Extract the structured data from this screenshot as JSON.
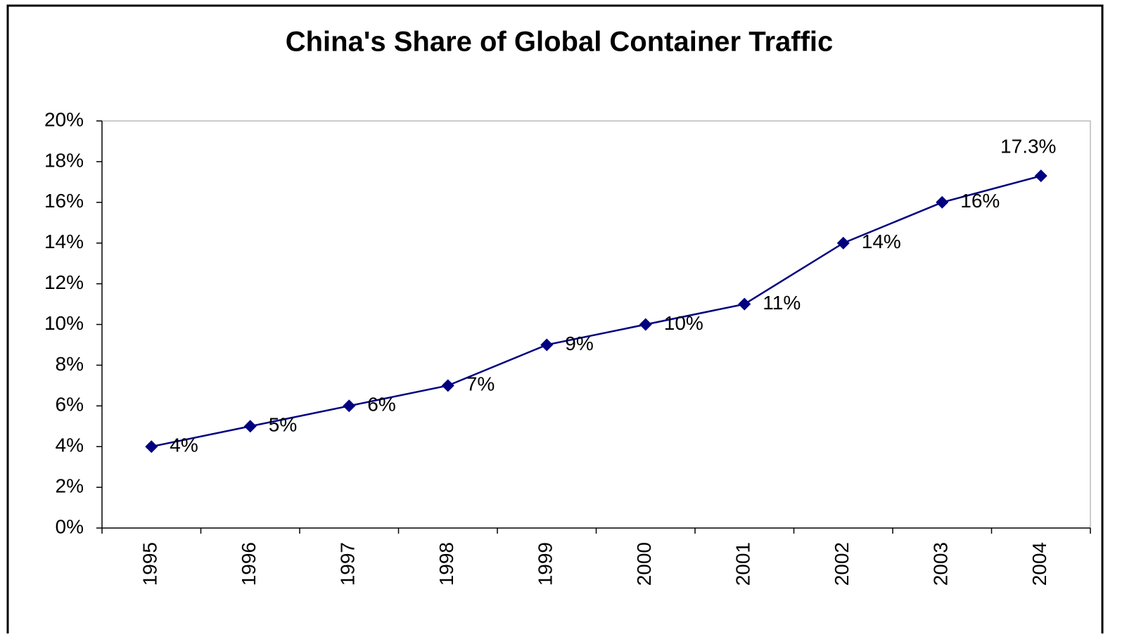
{
  "chart_data": {
    "type": "line",
    "title": "China's Share of Global Container Traffic",
    "categories": [
      "1995",
      "1996",
      "1997",
      "1998",
      "1999",
      "2000",
      "2001",
      "2002",
      "2003",
      "2004"
    ],
    "series": [
      {
        "color": "#000080",
        "values": [
          4,
          5,
          6,
          7,
          9,
          10,
          11,
          14,
          16,
          17.3
        ],
        "value_labels": [
          "4%",
          "5%",
          "6%",
          "7%",
          "9%",
          "10%",
          "11%",
          "14%",
          "16%",
          "17.3%"
        ]
      }
    ],
    "ylim": [
      0,
      20
    ],
    "yticks": [
      {
        "value": 0,
        "label": "0%"
      },
      {
        "value": 2,
        "label": "2%"
      },
      {
        "value": 4,
        "label": "4%"
      },
      {
        "value": 6,
        "label": "6%"
      },
      {
        "value": 8,
        "label": "8%"
      },
      {
        "value": 10,
        "label": "10%"
      },
      {
        "value": 12,
        "label": "12%"
      },
      {
        "value": 14,
        "label": "14%"
      },
      {
        "value": 16,
        "label": "16%"
      },
      {
        "value": 18,
        "label": "18%"
      },
      {
        "value": 20,
        "label": "20%"
      }
    ],
    "grid": false
  }
}
